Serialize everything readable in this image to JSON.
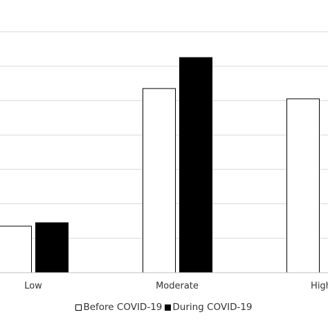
{
  "chart_data": {
    "type": "bar",
    "categories": [
      "Low",
      "Moderate",
      "High"
    ],
    "series": [
      {
        "name": "Before COVID-19",
        "values": [
          13.5,
          53.5,
          50.5
        ],
        "fill": "#ffffff",
        "stroke": "#000000"
      },
      {
        "name": "During COVID-19",
        "values": [
          14.5,
          62.5,
          null
        ],
        "fill": "#000000",
        "stroke": "#000000"
      }
    ],
    "ylim": [
      0,
      75
    ],
    "grid": true,
    "legend_position": "bottom"
  }
}
